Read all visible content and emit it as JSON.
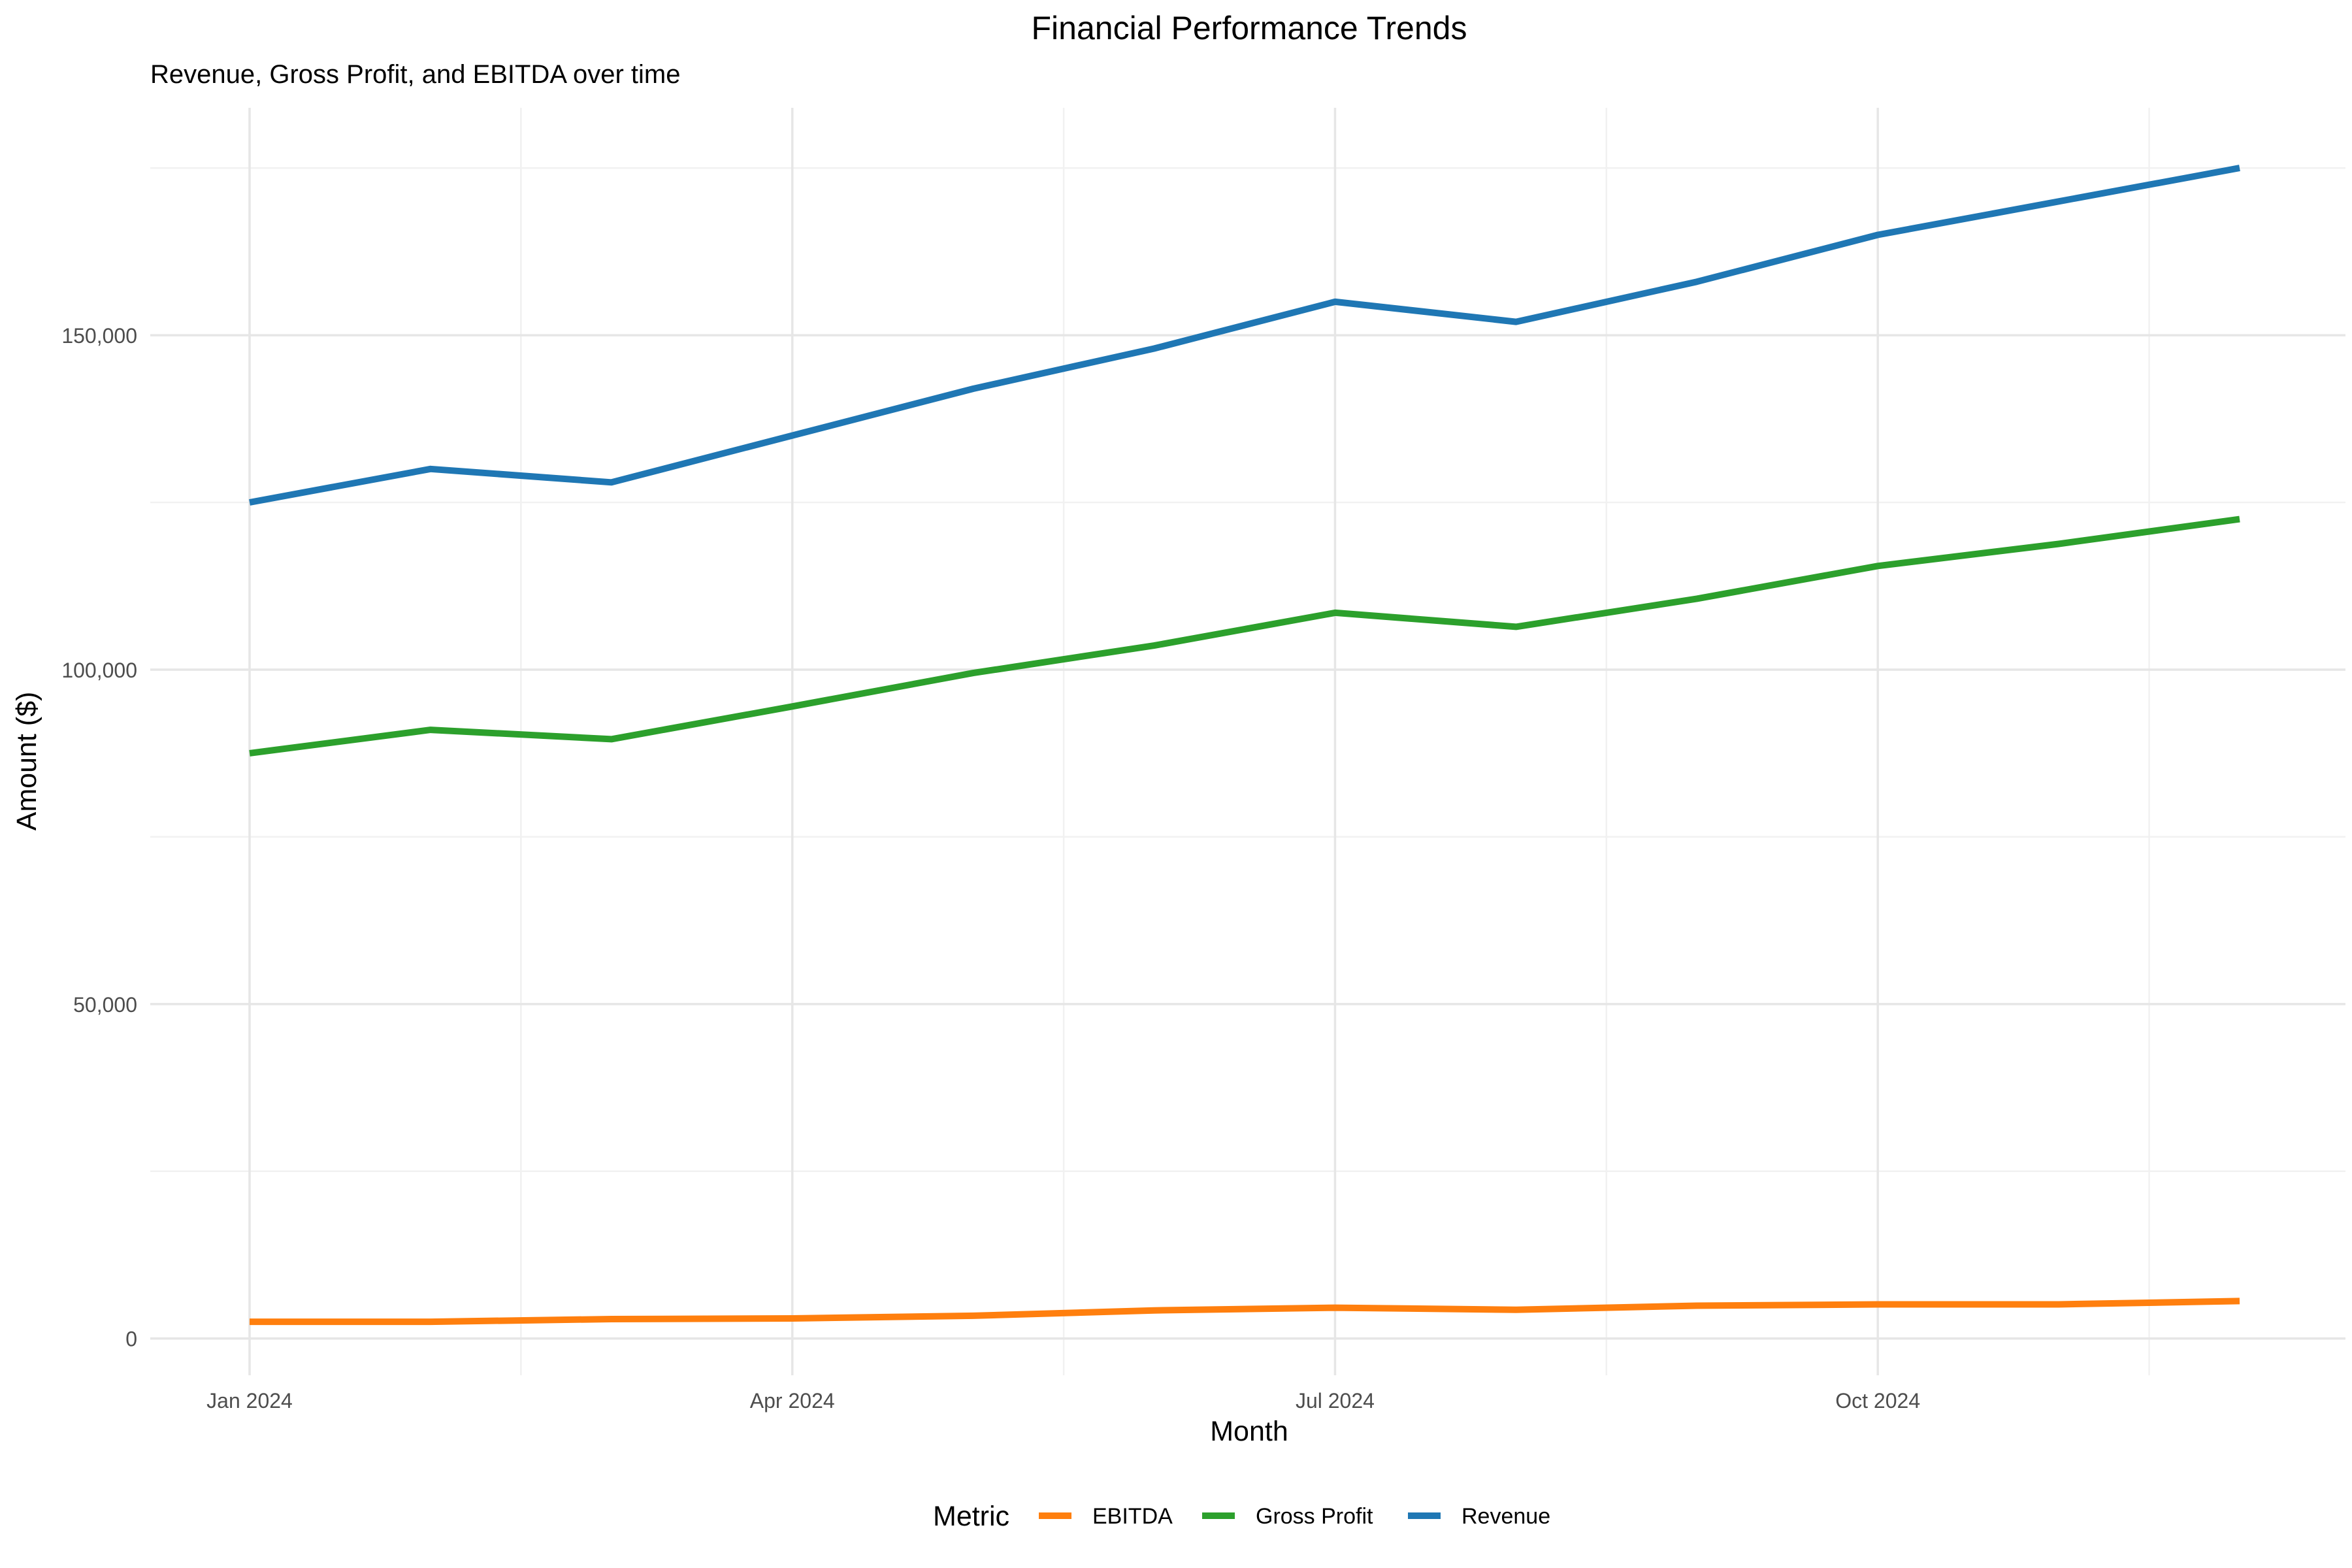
{
  "chart_data": {
    "type": "line",
    "title": "Financial Performance Trends",
    "subtitle": "Revenue, Gross Profit, and EBITDA over time",
    "xlabel": "Month",
    "ylabel": "Amount ($)",
    "x": [
      "2024-01",
      "2024-02",
      "2024-03",
      "2024-04",
      "2024-05",
      "2024-06",
      "2024-07",
      "2024-08",
      "2024-09",
      "2024-10",
      "2024-11",
      "2024-12"
    ],
    "x_ticks": [
      {
        "value": "2024-01",
        "label": "Jan 2024"
      },
      {
        "value": "2024-04",
        "label": "Apr 2024"
      },
      {
        "value": "2024-07",
        "label": "Jul 2024"
      },
      {
        "value": "2024-10",
        "label": "Oct 2024"
      }
    ],
    "y_ticks": [
      {
        "value": 0,
        "label": "0"
      },
      {
        "value": 50000,
        "label": "50,000"
      },
      {
        "value": 100000,
        "label": "100,000"
      },
      {
        "value": 150000,
        "label": "150,000"
      }
    ],
    "ylim": [
      -5500,
      184000
    ],
    "grid": true,
    "legend": {
      "title": "Metric",
      "position": "bottom"
    },
    "series": [
      {
        "name": "EBITDA",
        "color": "#FF7F0E",
        "values": [
          2500,
          2500,
          2900,
          3000,
          3400,
          4200,
          4600,
          4300,
          4900,
          5100,
          5100,
          5600
        ]
      },
      {
        "name": "Gross Profit",
        "color": "#2CA02C",
        "values": [
          87500,
          91000,
          89600,
          94500,
          99500,
          103600,
          108500,
          106400,
          110600,
          115500,
          118800,
          122500
        ]
      },
      {
        "name": "Revenue",
        "color": "#1F77B4",
        "values": [
          125000,
          130000,
          128000,
          135000,
          142000,
          148000,
          155000,
          152000,
          158000,
          165000,
          170000,
          175000
        ]
      }
    ]
  }
}
